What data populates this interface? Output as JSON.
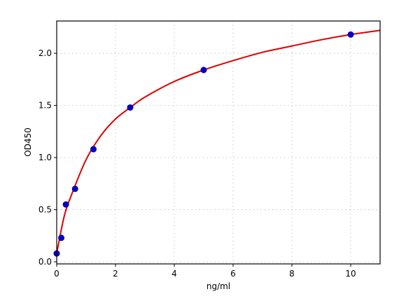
{
  "chart_data": {
    "type": "scatter",
    "title": "",
    "xlabel": "ng/ml",
    "ylabel": "OD450",
    "xlim": [
      0,
      11
    ],
    "ylim": [
      -0.02,
      2.31
    ],
    "xticks": [
      0,
      2,
      4,
      6,
      8,
      10
    ],
    "xtick_labels": [
      "0",
      "2",
      "4",
      "6",
      "8",
      "10"
    ],
    "yticks": [
      0.0,
      0.5,
      1.0,
      1.5,
      2.0
    ],
    "ytick_labels": [
      "0.0",
      "0.5",
      "1.0",
      "1.5",
      "2.0"
    ],
    "grid": true,
    "legend": null,
    "series": [
      {
        "name": "standards",
        "kind": "scatter",
        "color": "#0000cc",
        "x": [
          0,
          0.156,
          0.3125,
          0.625,
          1.25,
          2.5,
          5,
          10
        ],
        "y": [
          0.08,
          0.23,
          0.55,
          0.7,
          1.08,
          1.48,
          1.84,
          2.18
        ]
      },
      {
        "name": "fit curve",
        "kind": "line",
        "color": "#dd0000",
        "model": "4PL-like saturating fit",
        "x": [
          0,
          0.25,
          0.5,
          1,
          1.5,
          2,
          2.5,
          3,
          4,
          5,
          6,
          7,
          8,
          9,
          10,
          11
        ],
        "y": [
          0.08,
          0.43,
          0.64,
          0.98,
          1.21,
          1.37,
          1.48,
          1.58,
          1.73,
          1.84,
          1.93,
          2.01,
          2.07,
          2.13,
          2.18,
          2.22
        ]
      }
    ]
  }
}
